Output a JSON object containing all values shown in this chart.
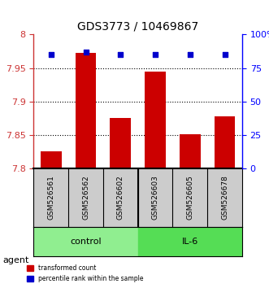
{
  "title": "GDS3773 / 10469867",
  "samples": [
    "GSM526561",
    "GSM526562",
    "GSM526602",
    "GSM526603",
    "GSM526605",
    "GSM526678"
  ],
  "red_values": [
    7.825,
    7.972,
    7.875,
    7.945,
    7.851,
    7.878
  ],
  "blue_values": [
    85,
    87,
    85,
    85,
    85,
    85
  ],
  "ylim_left": [
    7.8,
    8.0
  ],
  "ylim_right": [
    0,
    100
  ],
  "yticks_left": [
    7.8,
    7.85,
    7.9,
    7.95,
    8.0
  ],
  "ytick_labels_left": [
    "7.8",
    "7.85",
    "7.9",
    "7.95",
    "8"
  ],
  "yticks_right": [
    0,
    25,
    50,
    75,
    100
  ],
  "ytick_labels_right": [
    "0",
    "25",
    "50",
    "75",
    "100%"
  ],
  "groups": [
    {
      "label": "control",
      "indices": [
        0,
        1,
        2
      ],
      "color": "#90EE90"
    },
    {
      "label": "IL-6",
      "indices": [
        3,
        4,
        5
      ],
      "color": "#00CC00"
    }
  ],
  "bar_color": "#CC0000",
  "dot_color": "#0000CC",
  "bar_bottom": 7.8,
  "grid_color": "#000000",
  "bg_color": "#FFFFFF",
  "label_area_color": "#CCCCCC",
  "agent_label": "agent"
}
